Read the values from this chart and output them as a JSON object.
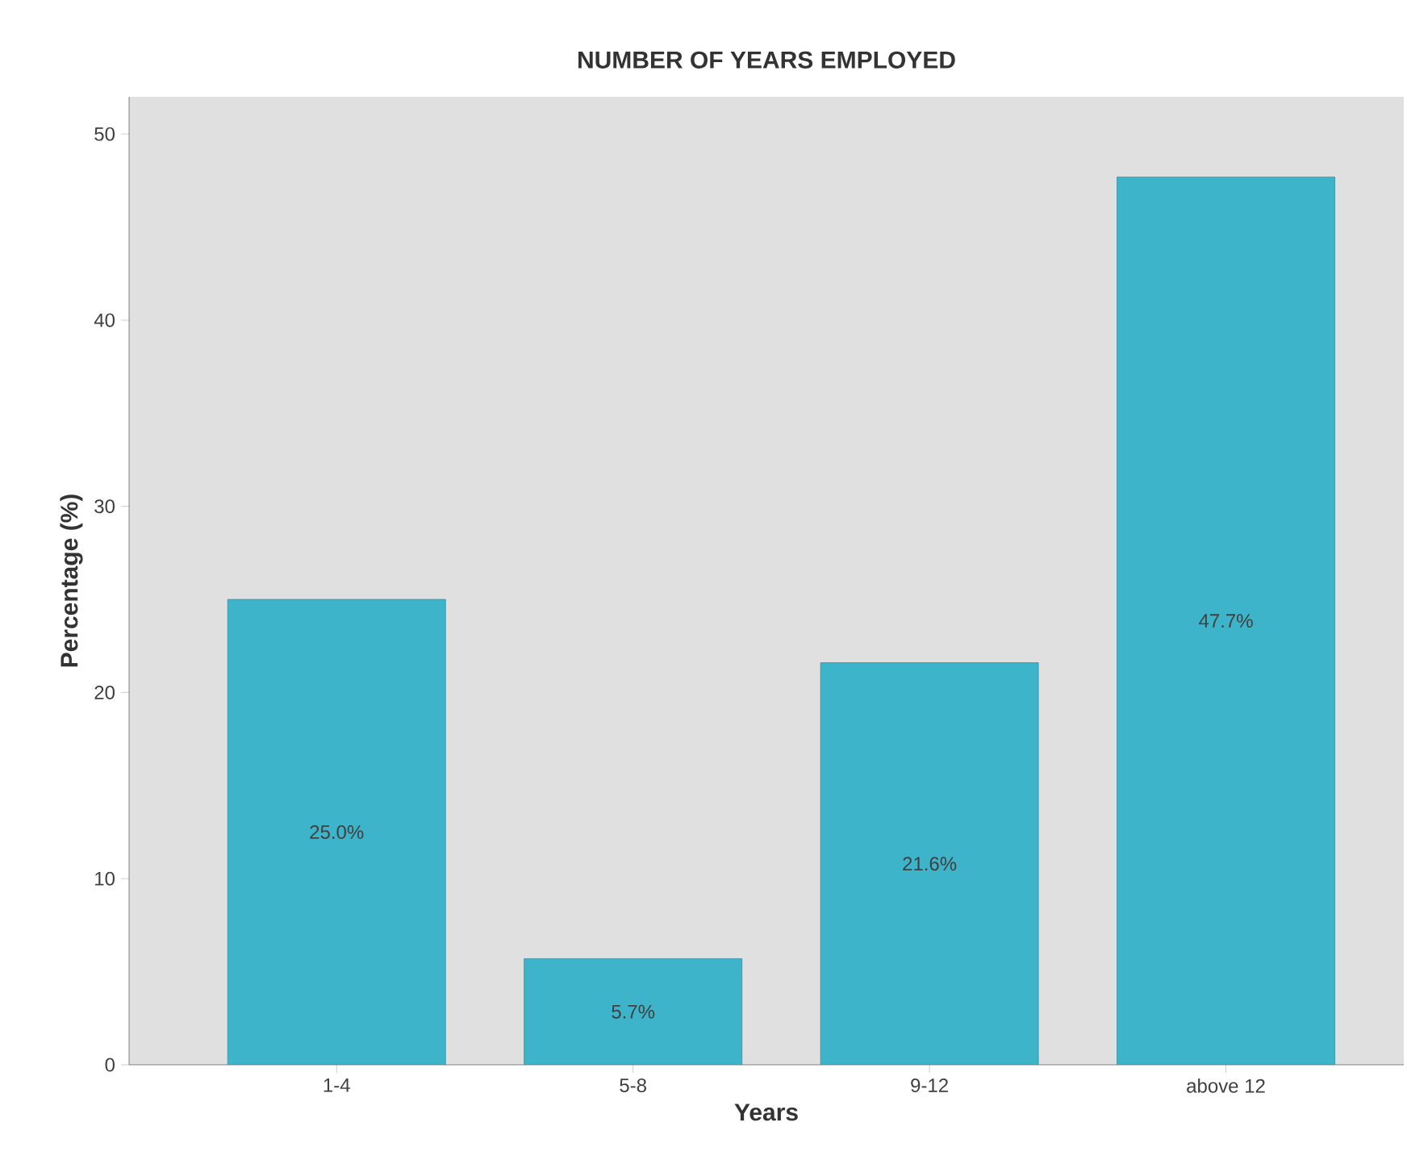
{
  "chart_data": {
    "type": "bar",
    "title": "NUMBER OF YEARS EMPLOYED",
    "xlabel": "Years",
    "ylabel": "Percentage (%)",
    "categories": [
      "1-4",
      "5-8",
      "9-12",
      "above 12"
    ],
    "values": [
      25.0,
      5.7,
      21.6,
      47.7
    ],
    "value_labels": [
      "25.0%",
      "5.7%",
      "21.6%",
      "47.7%"
    ],
    "color": "#3db4ca",
    "ylim": [
      0,
      52
    ],
    "yticks": [
      0,
      10,
      20,
      30,
      40,
      50
    ]
  }
}
